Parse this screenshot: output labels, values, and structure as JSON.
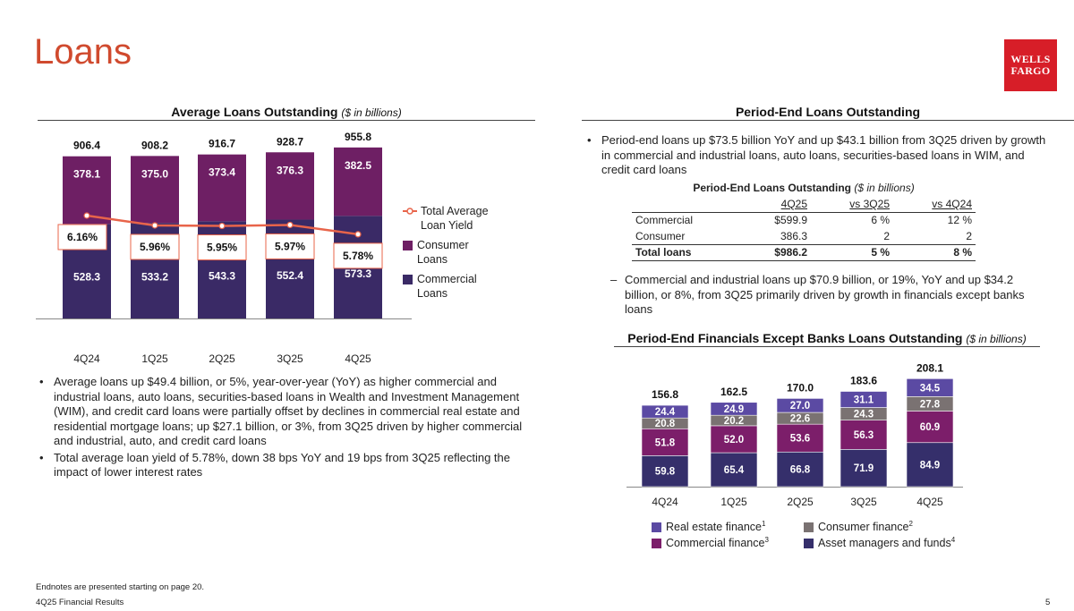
{
  "page": {
    "title": "Loans",
    "logo_line1": "WELLS",
    "logo_line2": "FARGO",
    "footer_note": "Endnotes are presented starting on page 20.",
    "footer_doc": "4Q25 Financial Results",
    "page_number": "5"
  },
  "colors": {
    "title": "#d04a2e",
    "consumer": "#6e1f64",
    "commercial": "#3a2a66",
    "yield_line": "#e8644a",
    "real_estate": "#5b4aa3",
    "consumer_finance": "#7a7272",
    "commercial_finance": "#7c1e6a",
    "asset_managers": "#352f6b"
  },
  "left": {
    "chart_title": "Average Loans Outstanding",
    "chart_units": "($ in billions)",
    "bullets": [
      "Average loans up $49.4 billion, or 5%, year-over-year (YoY) as higher commercial and industrial loans, auto loans, securities-based loans in Wealth and Investment Management (WIM), and credit card loans were partially offset by declines in commercial real estate and residential mortgage loans; up $27.1 billion, or 3%, from 3Q25 driven by higher commercial and industrial, auto, and credit card loans",
      "Total average loan yield of 5.78%, down 38 bps YoY and 19 bps from 3Q25 reflecting the impact of lower interest rates"
    ]
  },
  "right": {
    "section_title": "Period-End Loans Outstanding",
    "bullet": "Period-end loans up $73.5 billion YoY and up $43.1 billion from 3Q25 driven by growth in commercial and industrial loans, auto loans, securities-based loans in WIM, and credit card loans",
    "table": {
      "title": "Period-End Loans Outstanding",
      "units": "($ in billions)",
      "headers": [
        "",
        "4Q25",
        "vs 3Q25",
        "vs 4Q24"
      ],
      "rows": [
        [
          "Commercial",
          "$599.9",
          "6 %",
          "12 %"
        ],
        [
          "Consumer",
          "386.3",
          "2",
          "2"
        ]
      ],
      "total": [
        "Total loans",
        "$986.2",
        "5 %",
        "8 %"
      ]
    },
    "sub_bullet": "Commercial and industrial loans up $70.9 billion, or 19%, YoY and up $34.2 billion, or 8%, from 3Q25 primarily driven by growth in financials except banks loans",
    "chart2_title": "Period-End Financials Except Banks Loans Outstanding",
    "chart2_units": "($ in billions)"
  },
  "chart_data": [
    {
      "type": "bar",
      "stacked": true,
      "title": "Average Loans Outstanding ($ in billions)",
      "categories": [
        "4Q24",
        "1Q25",
        "2Q25",
        "3Q25",
        "4Q25"
      ],
      "series": [
        {
          "name": "Commercial Loans",
          "values": [
            528.3,
            533.2,
            543.3,
            552.4,
            573.3
          ],
          "labels": [
            "528.3",
            "533.2",
            "543.3",
            "552.4",
            "573.3"
          ]
        },
        {
          "name": "Consumer Loans",
          "values": [
            378.1,
            375.0,
            373.4,
            376.3,
            382.5
          ],
          "labels": [
            "378.1",
            "375.0",
            "373.4",
            "376.3",
            "382.5"
          ]
        }
      ],
      "totals": [
        "906.4",
        "908.2",
        "916.7",
        "928.7",
        "955.8"
      ],
      "line_series": {
        "name": "Total Average Loan Yield",
        "values": [
          6.16,
          5.96,
          5.95,
          5.97,
          5.78
        ],
        "labels": [
          "6.16%",
          "5.96%",
          "5.95%",
          "5.97%",
          "5.78%"
        ]
      },
      "legend": [
        "Total Average Loan Yield",
        "Consumer Loans",
        "Commercial Loans"
      ],
      "ylim": [
        0,
        1000
      ]
    },
    {
      "type": "bar",
      "stacked": true,
      "title": "Period-End Financials Except Banks Loans Outstanding ($ in billions)",
      "categories": [
        "4Q24",
        "1Q25",
        "2Q25",
        "3Q25",
        "4Q25"
      ],
      "series": [
        {
          "name": "Asset managers and funds",
          "sup": "4",
          "values": [
            59.8,
            65.4,
            66.8,
            71.9,
            84.9
          ],
          "labels": [
            "59.8",
            "65.4",
            "66.8",
            "71.9",
            "84.9"
          ]
        },
        {
          "name": "Commercial finance",
          "sup": "3",
          "values": [
            51.8,
            52.0,
            53.6,
            56.3,
            60.9
          ],
          "labels": [
            "51.8",
            "52.0",
            "53.6",
            "56.3",
            "60.9"
          ]
        },
        {
          "name": "Consumer finance",
          "sup": "2",
          "values": [
            20.8,
            20.2,
            22.6,
            24.3,
            27.8
          ],
          "labels": [
            "20.8",
            "20.2",
            "22.6",
            "24.3",
            "27.8"
          ]
        },
        {
          "name": "Real estate finance",
          "sup": "1",
          "values": [
            24.4,
            24.9,
            27.0,
            31.1,
            34.5
          ],
          "labels": [
            "24.4",
            "24.9",
            "27.0",
            "31.1",
            "34.5"
          ]
        }
      ],
      "totals": [
        "156.8",
        "162.5",
        "170.0",
        "183.6",
        "208.1"
      ],
      "legend": [
        "Real estate finance",
        "Consumer finance",
        "Commercial finance",
        "Asset managers and funds"
      ],
      "ylim": [
        0,
        220
      ]
    }
  ]
}
